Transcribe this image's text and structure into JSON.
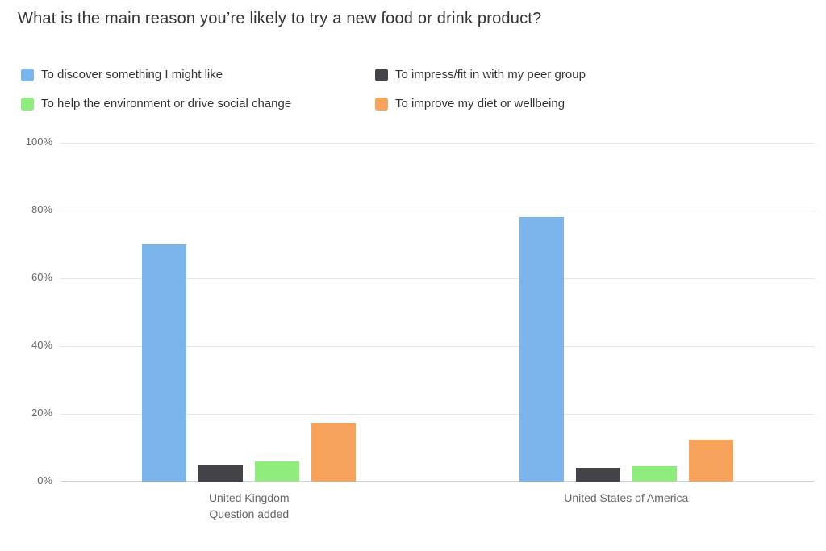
{
  "chart_data": {
    "type": "bar",
    "title": "What is the main reason you’re likely to try a new food or drink product?",
    "categories": [
      [
        "United Kingdom",
        "Question added"
      ],
      [
        "United States of America"
      ]
    ],
    "series": [
      {
        "name": "To discover something I might like",
        "color": "#7cb5ec",
        "values": [
          70,
          78
        ]
      },
      {
        "name": "To impress/fit in with my peer group",
        "color": "#434348",
        "values": [
          5,
          4
        ]
      },
      {
        "name": "To help the environment or drive social change",
        "color": "#90ed7d",
        "values": [
          6,
          4.5
        ]
      },
      {
        "name": "To improve my diet or wellbeing",
        "color": "#f7a35c",
        "values": [
          17.5,
          12.5
        ]
      }
    ],
    "yticks": [
      {
        "label": "0%",
        "value": 0
      },
      {
        "label": "20%",
        "value": 20
      },
      {
        "label": "40%",
        "value": 40
      },
      {
        "label": "60%",
        "value": 60
      },
      {
        "label": "80%",
        "value": 80
      },
      {
        "label": "100%",
        "value": 100
      }
    ],
    "ylim": [
      0,
      100
    ],
    "grid": true,
    "legend_position": "top",
    "colors": {
      "background": "#ffffff",
      "title": "#333333",
      "legend_label": "#333333",
      "gridline": "#e6e6e6",
      "axis_line": "#ccd6eb",
      "tick_label": "#666666",
      "category_label": "#666666"
    }
  }
}
